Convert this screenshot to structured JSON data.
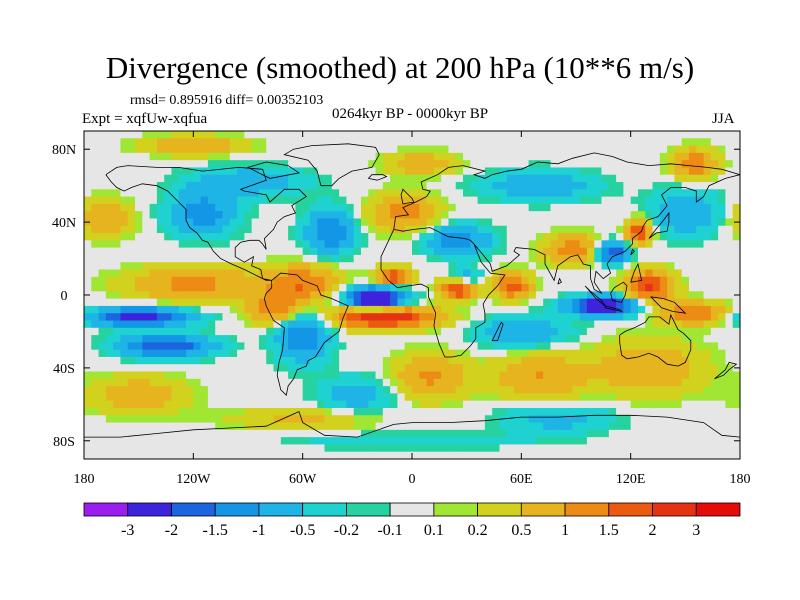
{
  "header": {
    "title": "Divergence (smoothed) at 200 hPa (10**6 m/s)",
    "stats": "rmsd= 0.895916 diff= 0.00352103",
    "period": "0264kyr BP - 0000kyr BP",
    "experiment": "Expt = xqfUw-xqfua",
    "season": "JJA"
  },
  "chart_data": {
    "type": "heatmap",
    "title": "Divergence (smoothed) at 200 hPa (10**6 m/s)",
    "xlabel": "",
    "ylabel": "",
    "xlim": [
      -180,
      180
    ],
    "ylim": [
      -90,
      90
    ],
    "x_ticks": [
      {
        "value": -180,
        "label": "180"
      },
      {
        "value": -120,
        "label": "120W"
      },
      {
        "value": -60,
        "label": "60W"
      },
      {
        "value": 0,
        "label": "0"
      },
      {
        "value": 60,
        "label": "60E"
      },
      {
        "value": 120,
        "label": "120E"
      },
      {
        "value": 180,
        "label": "180"
      }
    ],
    "y_ticks": [
      {
        "value": 80,
        "label": "80N"
      },
      {
        "value": 40,
        "label": "40N"
      },
      {
        "value": 0,
        "label": "0"
      },
      {
        "value": -40,
        "label": "40S"
      },
      {
        "value": -80,
        "label": "80S"
      }
    ],
    "colorbar": {
      "levels": [
        "-3",
        "-2",
        "-1.5",
        "-1",
        "-0.5",
        "-0.2",
        "-0.1",
        "0.1",
        "0.2",
        "0.5",
        "1",
        "1.5",
        "2",
        "3"
      ],
      "colors": [
        "#9b1ef0",
        "#3e23dc",
        "#1c64e0",
        "#1496e6",
        "#1eb4e6",
        "#1ed2d2",
        "#26d2a0",
        "#e6e6e6",
        "#a0e632",
        "#d2d21e",
        "#e6b41e",
        "#ec8c14",
        "#eb5a0f",
        "#e63214",
        "#e60a0a"
      ]
    },
    "blobs": [
      {
        "lon": -20,
        "lat": -2,
        "value": -3.2,
        "rlon": 16,
        "rlat": 6
      },
      {
        "lon": 105,
        "lat": -6,
        "value": -3.0,
        "rlon": 18,
        "rlat": 5
      },
      {
        "lon": -15,
        "lat": -12,
        "value": 2.6,
        "rlon": 28,
        "rlat": 6
      },
      {
        "lon": -10,
        "lat": 10,
        "value": 2.0,
        "rlon": 9,
        "rlat": 5
      },
      {
        "lon": 25,
        "lat": 3,
        "value": 2.2,
        "rlon": 10,
        "rlat": 5
      },
      {
        "lon": 55,
        "lat": 5,
        "value": 1.8,
        "rlon": 10,
        "rlat": 7
      },
      {
        "lon": 130,
        "lat": 5,
        "value": 2.2,
        "rlon": 13,
        "rlat": 8
      },
      {
        "lon": 88,
        "lat": 25,
        "value": 1.3,
        "rlon": 15,
        "rlat": 8
      },
      {
        "lon": 125,
        "lat": 35,
        "value": 2.0,
        "rlon": 7,
        "rlat": 7
      },
      {
        "lon": 110,
        "lat": 23,
        "value": -2.0,
        "rlon": 9,
        "rlat": 6
      },
      {
        "lon": -150,
        "lat": -12,
        "value": -2.4,
        "rlon": 26,
        "rlat": 5
      },
      {
        "lon": -135,
        "lat": -28,
        "value": -2.0,
        "rlon": 25,
        "rlat": 6
      },
      {
        "lon": -120,
        "lat": 6,
        "value": 1.2,
        "rlon": 35,
        "rlat": 9
      },
      {
        "lon": -60,
        "lat": 6,
        "value": 1.5,
        "rlon": 20,
        "rlat": 10
      },
      {
        "lon": -75,
        "lat": -8,
        "value": 1.4,
        "rlon": 14,
        "rlat": 8
      },
      {
        "lon": -60,
        "lat": -22,
        "value": -1.5,
        "rlon": 14,
        "rlat": 14
      },
      {
        "lon": -45,
        "lat": 35,
        "value": -1.5,
        "rlon": 13,
        "rlat": 12
      },
      {
        "lon": -115,
        "lat": 45,
        "value": -1.3,
        "rlon": 18,
        "rlat": 12
      },
      {
        "lon": -90,
        "lat": 62,
        "value": -0.9,
        "rlon": 30,
        "rlat": 8
      },
      {
        "lon": -5,
        "lat": 45,
        "value": 1.3,
        "rlon": 18,
        "rlat": 10
      },
      {
        "lon": 25,
        "lat": 30,
        "value": -1.3,
        "rlon": 18,
        "rlat": 8
      },
      {
        "lon": 5,
        "lat": 72,
        "value": 1.0,
        "rlon": 18,
        "rlat": 6
      },
      {
        "lon": 70,
        "lat": 60,
        "value": -1.0,
        "rlon": 30,
        "rlat": 8
      },
      {
        "lon": 155,
        "lat": 72,
        "value": 1.4,
        "rlon": 12,
        "rlat": 8
      },
      {
        "lon": 150,
        "lat": 45,
        "value": -1.0,
        "rlon": 20,
        "rlat": 12
      },
      {
        "lon": -170,
        "lat": 42,
        "value": 1.0,
        "rlon": 15,
        "rlat": 10
      },
      {
        "lon": -120,
        "lat": 82,
        "value": 1.0,
        "rlon": 28,
        "rlat": 5
      },
      {
        "lon": 10,
        "lat": -45,
        "value": 1.1,
        "rlon": 20,
        "rlat": 12
      },
      {
        "lon": 70,
        "lat": -45,
        "value": 1.0,
        "rlon": 25,
        "rlat": 12
      },
      {
        "lon": 130,
        "lat": -40,
        "value": 0.9,
        "rlon": 30,
        "rlat": 15
      },
      {
        "lon": 60,
        "lat": -20,
        "value": -1.0,
        "rlon": 25,
        "rlat": 8
      },
      {
        "lon": -30,
        "lat": -55,
        "value": -0.8,
        "rlon": 20,
        "rlat": 10
      },
      {
        "lon": -150,
        "lat": -55,
        "value": 0.9,
        "rlon": 25,
        "rlat": 10
      },
      {
        "lon": 80,
        "lat": -68,
        "value": -0.7,
        "rlon": 30,
        "rlat": 8
      },
      {
        "lon": -60,
        "lat": -68,
        "value": 0.6,
        "rlon": 40,
        "rlat": 6
      },
      {
        "lon": 0,
        "lat": -80,
        "value": -0.5,
        "rlon": 60,
        "rlat": 4
      },
      {
        "lon": 30,
        "lat": 10,
        "value": -0.8,
        "rlon": 8,
        "rlat": 5
      },
      {
        "lon": 155,
        "lat": -10,
        "value": 1.5,
        "rlon": 18,
        "rlat": 6
      }
    ]
  },
  "coastlines": [
    [
      [
        -168,
        66
      ],
      [
        -162,
        70
      ],
      [
        -156,
        71
      ],
      [
        -140,
        70
      ],
      [
        -128,
        70
      ],
      [
        -115,
        68
      ],
      [
        -95,
        70
      ],
      [
        -82,
        69
      ],
      [
        -80,
        63
      ],
      [
        -94,
        58
      ],
      [
        -92,
        57
      ],
      [
        -80,
        55
      ],
      [
        -78,
        51
      ],
      [
        -70,
        58
      ],
      [
        -62,
        58
      ],
      [
        -58,
        54
      ],
      [
        -66,
        49
      ],
      [
        -64,
        45
      ],
      [
        -70,
        43
      ],
      [
        -74,
        40
      ],
      [
        -76,
        36
      ],
      [
        -81,
        31
      ],
      [
        -80,
        25
      ],
      [
        -82,
        28
      ],
      [
        -84,
        30
      ],
      [
        -89,
        30
      ],
      [
        -94,
        29
      ],
      [
        -97,
        26
      ],
      [
        -97,
        21
      ],
      [
        -92,
        18
      ],
      [
        -87,
        21
      ],
      [
        -88,
        16
      ],
      [
        -83,
        14
      ],
      [
        -82,
        9
      ],
      [
        -77,
        8
      ],
      [
        -80,
        8
      ],
      [
        -86,
        11
      ],
      [
        -92,
        14
      ],
      [
        -99,
        17
      ],
      [
        -105,
        20
      ],
      [
        -109,
        24
      ],
      [
        -112,
        29
      ],
      [
        -115,
        30
      ],
      [
        -118,
        34
      ],
      [
        -122,
        37
      ],
      [
        -124,
        41
      ],
      [
        -124,
        47
      ],
      [
        -128,
        51
      ],
      [
        -134,
        57
      ],
      [
        -140,
        60
      ],
      [
        -148,
        61
      ],
      [
        -154,
        59
      ],
      [
        -158,
        57
      ],
      [
        -162,
        59
      ],
      [
        -165,
        62
      ],
      [
        -168,
        66
      ]
    ],
    [
      [
        -77,
        8
      ],
      [
        -72,
        12
      ],
      [
        -63,
        11
      ],
      [
        -60,
        8
      ],
      [
        -52,
        5
      ],
      [
        -50,
        0
      ],
      [
        -44,
        -2
      ],
      [
        -35,
        -6
      ],
      [
        -38,
        -13
      ],
      [
        -40,
        -20
      ],
      [
        -44,
        -23
      ],
      [
        -48,
        -26
      ],
      [
        -53,
        -34
      ],
      [
        -57,
        -36
      ],
      [
        -58,
        -39
      ],
      [
        -63,
        -41
      ],
      [
        -65,
        -46
      ],
      [
        -68,
        -50
      ],
      [
        -69,
        -55
      ],
      [
        -72,
        -52
      ],
      [
        -74,
        -44
      ],
      [
        -73,
        -37
      ],
      [
        -71,
        -30
      ],
      [
        -70,
        -18
      ],
      [
        -76,
        -14
      ],
      [
        -80,
        -6
      ],
      [
        -81,
        -2
      ],
      [
        -80,
        1
      ],
      [
        -77,
        4
      ],
      [
        -77,
        8
      ]
    ],
    [
      [
        -10,
        36
      ],
      [
        -9,
        43
      ],
      [
        -2,
        44
      ],
      [
        -5,
        48
      ],
      [
        2,
        51
      ],
      [
        8,
        54
      ],
      [
        10,
        57
      ],
      [
        6,
        58
      ],
      [
        5,
        62
      ],
      [
        14,
        66
      ],
      [
        20,
        70
      ],
      [
        28,
        71
      ],
      [
        40,
        68
      ],
      [
        34,
        66
      ],
      [
        40,
        64
      ],
      [
        44,
        66
      ],
      [
        52,
        68
      ],
      [
        60,
        69
      ],
      [
        69,
        73
      ],
      [
        80,
        72
      ],
      [
        88,
        75
      ],
      [
        100,
        78
      ],
      [
        110,
        76
      ],
      [
        118,
        73
      ],
      [
        130,
        71
      ],
      [
        142,
        72
      ],
      [
        152,
        71
      ],
      [
        162,
        70
      ],
      [
        170,
        69
      ],
      [
        180,
        66
      ],
      [
        172,
        64
      ],
      [
        163,
        60
      ],
      [
        160,
        54
      ],
      [
        156,
        51
      ],
      [
        156,
        57
      ],
      [
        150,
        59
      ],
      [
        142,
        59
      ],
      [
        137,
        55
      ],
      [
        140,
        49
      ],
      [
        135,
        43
      ],
      [
        129,
        41
      ],
      [
        127,
        38
      ],
      [
        126,
        35
      ],
      [
        121,
        31
      ],
      [
        121,
        28
      ],
      [
        117,
        24
      ],
      [
        110,
        21
      ],
      [
        107,
        17
      ],
      [
        109,
        12
      ],
      [
        105,
        9
      ],
      [
        101,
        13
      ],
      [
        100,
        7
      ],
      [
        104,
        1
      ],
      [
        100,
        3
      ],
      [
        98,
        9
      ],
      [
        98,
        16
      ],
      [
        94,
        17
      ],
      [
        91,
        22
      ],
      [
        87,
        21
      ],
      [
        80,
        16
      ],
      [
        78,
        8
      ],
      [
        73,
        17
      ],
      [
        73,
        22
      ],
      [
        67,
        25
      ],
      [
        57,
        26
      ],
      [
        56,
        24
      ],
      [
        59,
        22
      ],
      [
        52,
        16
      ],
      [
        44,
        13
      ],
      [
        43,
        17
      ],
      [
        39,
        22
      ],
      [
        34,
        28
      ],
      [
        32,
        30
      ],
      [
        29,
        31
      ],
      [
        20,
        32
      ],
      [
        10,
        37
      ],
      [
        1,
        36
      ],
      [
        -5,
        35
      ],
      [
        -10,
        36
      ]
    ],
    [
      [
        -10,
        36
      ],
      [
        -17,
        21
      ],
      [
        -17,
        14
      ],
      [
        -13,
        8
      ],
      [
        -8,
        4
      ],
      [
        -2,
        5
      ],
      [
        5,
        6
      ],
      [
        9,
        4
      ],
      [
        9,
        -1
      ],
      [
        13,
        -10
      ],
      [
        12,
        -17
      ],
      [
        15,
        -27
      ],
      [
        18,
        -34
      ],
      [
        22,
        -34
      ],
      [
        27,
        -33
      ],
      [
        32,
        -28
      ],
      [
        35,
        -24
      ],
      [
        35,
        -18
      ],
      [
        40,
        -15
      ],
      [
        40,
        -10
      ],
      [
        39,
        -5
      ],
      [
        42,
        0
      ],
      [
        47,
        5
      ],
      [
        51,
        11
      ],
      [
        43,
        12
      ],
      [
        38,
        18
      ],
      [
        34,
        28
      ]
    ],
    [
      [
        114,
        -22
      ],
      [
        114,
        -26
      ],
      [
        115,
        -33
      ],
      [
        118,
        -35
      ],
      [
        124,
        -34
      ],
      [
        130,
        -32
      ],
      [
        135,
        -34
      ],
      [
        140,
        -38
      ],
      [
        146,
        -39
      ],
      [
        150,
        -37
      ],
      [
        153,
        -30
      ],
      [
        153,
        -25
      ],
      [
        149,
        -21
      ],
      [
        146,
        -19
      ],
      [
        142,
        -11
      ],
      [
        141,
        -16
      ],
      [
        136,
        -12
      ],
      [
        130,
        -12
      ],
      [
        128,
        -15
      ],
      [
        122,
        -18
      ],
      [
        117,
        -20
      ],
      [
        114,
        -22
      ]
    ],
    [
      [
        -50,
        60
      ],
      [
        -44,
        60
      ],
      [
        -40,
        64
      ],
      [
        -33,
        68
      ],
      [
        -22,
        70
      ],
      [
        -18,
        77
      ],
      [
        -20,
        81
      ],
      [
        -35,
        83
      ],
      [
        -55,
        82
      ],
      [
        -65,
        80
      ],
      [
        -70,
        77
      ],
      [
        -57,
        74
      ],
      [
        -52,
        68
      ],
      [
        -50,
        60
      ]
    ],
    [
      [
        -180,
        -78
      ],
      [
        -160,
        -78
      ],
      [
        -140,
        -76
      ],
      [
        -120,
        -74
      ],
      [
        -100,
        -73
      ],
      [
        -80,
        -72
      ],
      [
        -62,
        -64
      ],
      [
        -60,
        -70
      ],
      [
        -48,
        -77
      ],
      [
        -30,
        -78
      ],
      [
        -10,
        -71
      ],
      [
        0,
        -70
      ],
      [
        20,
        -70
      ],
      [
        40,
        -69
      ],
      [
        60,
        -67
      ],
      [
        80,
        -67
      ],
      [
        100,
        -66
      ],
      [
        120,
        -66
      ],
      [
        140,
        -67
      ],
      [
        160,
        -70
      ],
      [
        170,
        -77
      ],
      [
        180,
        -78
      ]
    ],
    [
      [
        -5,
        50
      ],
      [
        1,
        51
      ],
      [
        0,
        53
      ],
      [
        -3,
        56
      ],
      [
        -5,
        58
      ],
      [
        -6,
        55
      ],
      [
        -5,
        50
      ]
    ],
    [
      [
        130,
        31
      ],
      [
        134,
        34
      ],
      [
        140,
        35
      ],
      [
        141,
        40
      ],
      [
        141,
        45
      ],
      [
        138,
        41
      ],
      [
        133,
        35
      ],
      [
        130,
        31
      ]
    ],
    [
      [
        95,
        5
      ],
      [
        98,
        2
      ],
      [
        104,
        -3
      ],
      [
        106,
        -6
      ],
      [
        101,
        -2
      ],
      [
        95,
        5
      ]
    ],
    [
      [
        106,
        -6
      ],
      [
        114,
        -8
      ],
      [
        115,
        -9
      ],
      [
        106,
        -7
      ],
      [
        106,
        -6
      ]
    ],
    [
      [
        109,
        1
      ],
      [
        111,
        4
      ],
      [
        116,
        7
      ],
      [
        118,
        5
      ],
      [
        117,
        0
      ],
      [
        115,
        -4
      ],
      [
        110,
        -3
      ],
      [
        109,
        1
      ]
    ],
    [
      [
        131,
        -1
      ],
      [
        138,
        -2
      ],
      [
        144,
        -4
      ],
      [
        150,
        -10
      ],
      [
        143,
        -9
      ],
      [
        137,
        -7
      ],
      [
        131,
        -1
      ]
    ],
    [
      [
        44,
        -25
      ],
      [
        49,
        -15
      ],
      [
        50,
        -16
      ],
      [
        47,
        -25
      ],
      [
        44,
        -25
      ]
    ],
    [
      [
        166,
        -46
      ],
      [
        172,
        -41
      ],
      [
        174,
        -37
      ],
      [
        178,
        -38
      ],
      [
        174,
        -41
      ],
      [
        171,
        -44
      ],
      [
        166,
        -46
      ]
    ],
    [
      [
        -24,
        64
      ],
      [
        -22,
        66
      ],
      [
        -16,
        66
      ],
      [
        -14,
        65
      ],
      [
        -19,
        63
      ],
      [
        -24,
        64
      ]
    ],
    [
      [
        -80,
        73
      ],
      [
        -68,
        71
      ],
      [
        -62,
        67
      ],
      [
        -78,
        64
      ],
      [
        -90,
        70
      ],
      [
        -80,
        73
      ]
    ],
    [
      [
        80,
        6
      ],
      [
        81,
        9
      ],
      [
        82,
        7
      ],
      [
        80,
        6
      ]
    ],
    [
      [
        120,
        22
      ],
      [
        121,
        25
      ],
      [
        122,
        24
      ],
      [
        120,
        22
      ]
    ],
    [
      [
        120,
        7
      ],
      [
        122,
        13
      ],
      [
        124,
        17
      ],
      [
        126,
        8
      ],
      [
        120,
        7
      ]
    ]
  ]
}
